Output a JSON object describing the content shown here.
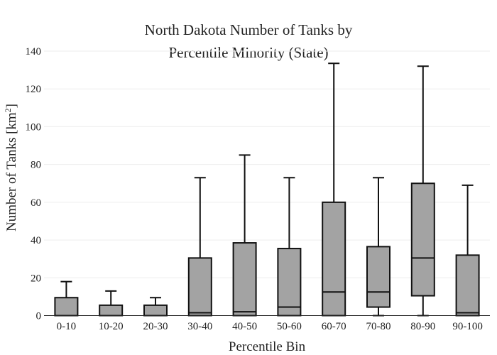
{
  "chart_data": {
    "type": "box",
    "title_line1": "North Dakota Number of Tanks by",
    "title_line2": "Percentile Minority (State)",
    "xlabel": "Percentile Bin",
    "ylabel_text": "Number of Tanks  [km",
    "ylabel_sup": "2",
    "ylabel_close": "]",
    "ylim": [
      0,
      140
    ],
    "yticks": [
      0,
      20,
      40,
      60,
      80,
      100,
      120,
      140
    ],
    "grid": true,
    "box_color": "#a3a3a3",
    "categories": [
      "0-10",
      "10-20",
      "20-30",
      "30-40",
      "40-50",
      "50-60",
      "60-70",
      "70-80",
      "80-90",
      "90-100"
    ],
    "boxes": [
      {
        "min": 0,
        "q1": 0,
        "median": 0,
        "q3": 9.5,
        "max": 18
      },
      {
        "min": 0,
        "q1": 0,
        "median": 0,
        "q3": 5.5,
        "max": 13
      },
      {
        "min": 0,
        "q1": 0,
        "median": 0,
        "q3": 5.5,
        "max": 9.5
      },
      {
        "min": 0,
        "q1": 0,
        "median": 1.5,
        "q3": 30.5,
        "max": 73
      },
      {
        "min": 0,
        "q1": 0,
        "median": 2,
        "q3": 38.5,
        "max": 85
      },
      {
        "min": 0,
        "q1": 0,
        "median": 4.5,
        "q3": 35.5,
        "max": 73
      },
      {
        "min": 0,
        "q1": 0,
        "median": 12.5,
        "q3": 60,
        "max": 133.5
      },
      {
        "min": 0,
        "q1": 4.5,
        "median": 12.5,
        "q3": 36.5,
        "max": 73
      },
      {
        "min": 0,
        "q1": 10.5,
        "median": 30.5,
        "q3": 70,
        "max": 132
      },
      {
        "min": 0,
        "q1": 0,
        "median": 1.5,
        "q3": 32,
        "max": 69
      }
    ]
  }
}
